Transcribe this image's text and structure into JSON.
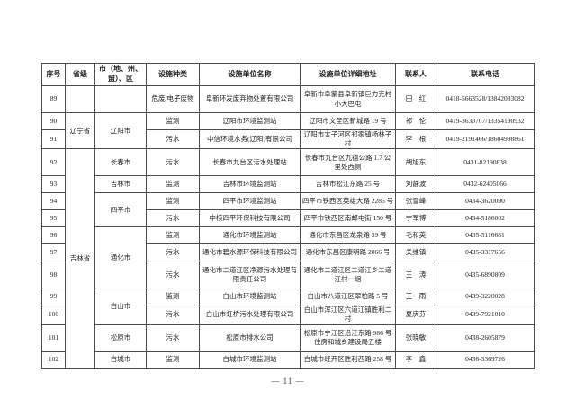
{
  "table": {
    "columns": [
      "序号",
      "省级",
      "市（地、州、盟）、区",
      "设施种类",
      "设施单位名称",
      "设施单位详细地址",
      "联系人",
      "联系电话"
    ],
    "rows": [
      {
        "no": "89",
        "province": {
          "text": "",
          "span": 1
        },
        "city": {
          "text": "",
          "span": 1
        },
        "type": "危废/电子废物",
        "name": "阜新环发废弃物处置有限公司",
        "address": "阜新市阜蒙县阜新镇巨力克村小大巴屯",
        "contact": "田　红",
        "phone": "0418-5663528/13842083082",
        "tall": true
      },
      {
        "no": "90",
        "province": {
          "text": "辽宁省",
          "span": 2
        },
        "city": {
          "text": "辽阳市",
          "span": 2
        },
        "type": "监测",
        "name": "辽阳市环境监测站",
        "address": "辽阳市文圣区新城路 19 号",
        "contact": "祁　伦",
        "phone": "0419-3630707/13354190932"
      },
      {
        "no": "91",
        "type": "污水",
        "name": "中信环境水务(辽阳)有限公司",
        "address": "辽阳市太子河区祁家镇杨林子村",
        "contact": "李　根",
        "phone": "0419-2191466/18604998861"
      },
      {
        "no": "92",
        "province": {
          "text": "吉林省",
          "span": 11
        },
        "city": {
          "text": "长春市",
          "span": 1
        },
        "type": "污水",
        "name": "长春市九台区污水处理站",
        "address": "长春市九台区九德公路 1.7 公里处西侧",
        "contact": "胡旭东",
        "phone": "0431-82190838",
        "tall": true
      },
      {
        "no": "93",
        "city": {
          "text": "吉林市",
          "span": 1
        },
        "type": "监测",
        "name": "吉林市环境监测站",
        "address": "吉林市松江东路 25 号",
        "contact": "刘静波",
        "phone": "0432-62405066"
      },
      {
        "no": "94",
        "city": {
          "text": "四平市",
          "span": 2
        },
        "type": "监测",
        "name": "四平市环境监测站",
        "address": "四平市铁西区英雄大路 2285 号",
        "contact": "张雪峰",
        "phone": "0434-3620090"
      },
      {
        "no": "95",
        "type": "污水",
        "name": "中核四平环保科技有限公司",
        "address": "四平市铁西区南邮电街 150 号",
        "contact": "宁军博",
        "phone": "0434-5186002"
      },
      {
        "no": "96",
        "city": {
          "text": "通化市",
          "span": 3
        },
        "type": "监测",
        "name": "通化市环境监测站",
        "address": "通化市东昌区龙泉路 59 号",
        "contact": "毛和英",
        "phone": "0435-5116681"
      },
      {
        "no": "97",
        "type": "污水",
        "name": "通化市碧水源环保科技有限公司",
        "address": "通化市东昌区康明路 2066 号",
        "contact": "关维镇",
        "phone": "0435-3317656"
      },
      {
        "no": "98",
        "type": "污水",
        "name": "通化市二道江区净源污水处理有限责任公司",
        "address": "通化市二道江区二道江乡二道江村一组",
        "contact": "王　涛",
        "phone": "0435-6890809",
        "tall": true
      },
      {
        "no": "99",
        "city": {
          "text": "白山市",
          "span": 2
        },
        "type": "监测",
        "name": "白山市环境监测站",
        "address": "白山市八道江区翠柏路 5 号",
        "contact": "王　雨",
        "phone": "0439-3220028"
      },
      {
        "no": "100",
        "type": "污水",
        "name": "白山市虹桥污水处理有限公司",
        "address": "白山市浑江区六道江镇胜利二村",
        "contact": "夏庆芬",
        "phone": "0439-7921010"
      },
      {
        "no": "101",
        "city": {
          "text": "松原市",
          "span": 1
        },
        "type": "污水",
        "name": "松原市排水公司",
        "address": "松原市宁江区沿江东路 986 号住房和城乡建设局五楼",
        "contact": "张晓敏",
        "phone": "0438-2605879",
        "tall": true
      },
      {
        "no": "102",
        "city": {
          "text": "白城市",
          "span": 1
        },
        "type": "监测",
        "name": "白城市环境监测站",
        "address": "白城市经开区胜利西路 258 号",
        "contact": "李　鑫",
        "phone": "0436-3369726"
      }
    ]
  },
  "footer": {
    "page_label": "—  11  —"
  }
}
